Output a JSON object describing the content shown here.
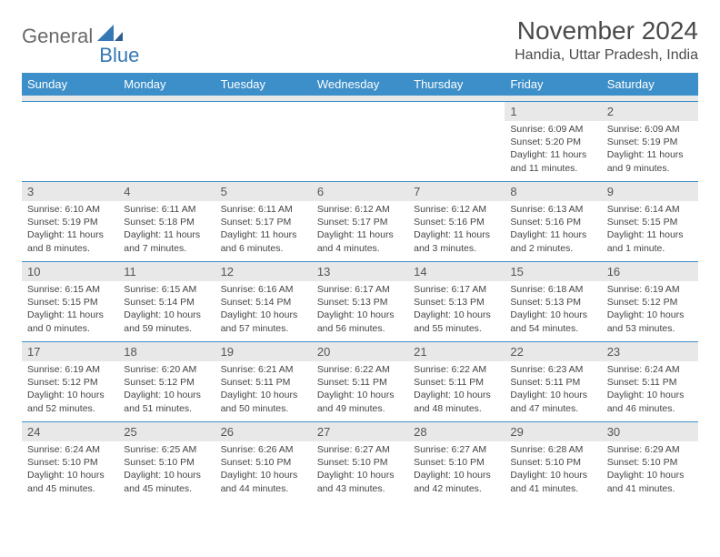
{
  "logo": {
    "part1": "General",
    "part2": "Blue"
  },
  "title": "November 2024",
  "location": "Handia, Uttar Pradesh, India",
  "colors": {
    "header_bg": "#3d8fc9",
    "header_text": "#ffffff",
    "daynum_bg": "#e8e8e8",
    "border": "#3d8fc9",
    "text": "#444444",
    "logo_gray": "#6a6a6a",
    "logo_blue": "#3478b5"
  },
  "day_header_fontsize": 13,
  "cell_fontsize": 10.5,
  "headers": [
    "Sunday",
    "Monday",
    "Tuesday",
    "Wednesday",
    "Thursday",
    "Friday",
    "Saturday"
  ],
  "weeks": [
    [
      null,
      null,
      null,
      null,
      null,
      {
        "n": "1",
        "sr": "6:09 AM",
        "ss": "5:20 PM",
        "dl": "11 hours and 11 minutes."
      },
      {
        "n": "2",
        "sr": "6:09 AM",
        "ss": "5:19 PM",
        "dl": "11 hours and 9 minutes."
      }
    ],
    [
      {
        "n": "3",
        "sr": "6:10 AM",
        "ss": "5:19 PM",
        "dl": "11 hours and 8 minutes."
      },
      {
        "n": "4",
        "sr": "6:11 AM",
        "ss": "5:18 PM",
        "dl": "11 hours and 7 minutes."
      },
      {
        "n": "5",
        "sr": "6:11 AM",
        "ss": "5:17 PM",
        "dl": "11 hours and 6 minutes."
      },
      {
        "n": "6",
        "sr": "6:12 AM",
        "ss": "5:17 PM",
        "dl": "11 hours and 4 minutes."
      },
      {
        "n": "7",
        "sr": "6:12 AM",
        "ss": "5:16 PM",
        "dl": "11 hours and 3 minutes."
      },
      {
        "n": "8",
        "sr": "6:13 AM",
        "ss": "5:16 PM",
        "dl": "11 hours and 2 minutes."
      },
      {
        "n": "9",
        "sr": "6:14 AM",
        "ss": "5:15 PM",
        "dl": "11 hours and 1 minute."
      }
    ],
    [
      {
        "n": "10",
        "sr": "6:15 AM",
        "ss": "5:15 PM",
        "dl": "11 hours and 0 minutes."
      },
      {
        "n": "11",
        "sr": "6:15 AM",
        "ss": "5:14 PM",
        "dl": "10 hours and 59 minutes."
      },
      {
        "n": "12",
        "sr": "6:16 AM",
        "ss": "5:14 PM",
        "dl": "10 hours and 57 minutes."
      },
      {
        "n": "13",
        "sr": "6:17 AM",
        "ss": "5:13 PM",
        "dl": "10 hours and 56 minutes."
      },
      {
        "n": "14",
        "sr": "6:17 AM",
        "ss": "5:13 PM",
        "dl": "10 hours and 55 minutes."
      },
      {
        "n": "15",
        "sr": "6:18 AM",
        "ss": "5:13 PM",
        "dl": "10 hours and 54 minutes."
      },
      {
        "n": "16",
        "sr": "6:19 AM",
        "ss": "5:12 PM",
        "dl": "10 hours and 53 minutes."
      }
    ],
    [
      {
        "n": "17",
        "sr": "6:19 AM",
        "ss": "5:12 PM",
        "dl": "10 hours and 52 minutes."
      },
      {
        "n": "18",
        "sr": "6:20 AM",
        "ss": "5:12 PM",
        "dl": "10 hours and 51 minutes."
      },
      {
        "n": "19",
        "sr": "6:21 AM",
        "ss": "5:11 PM",
        "dl": "10 hours and 50 minutes."
      },
      {
        "n": "20",
        "sr": "6:22 AM",
        "ss": "5:11 PM",
        "dl": "10 hours and 49 minutes."
      },
      {
        "n": "21",
        "sr": "6:22 AM",
        "ss": "5:11 PM",
        "dl": "10 hours and 48 minutes."
      },
      {
        "n": "22",
        "sr": "6:23 AM",
        "ss": "5:11 PM",
        "dl": "10 hours and 47 minutes."
      },
      {
        "n": "23",
        "sr": "6:24 AM",
        "ss": "5:11 PM",
        "dl": "10 hours and 46 minutes."
      }
    ],
    [
      {
        "n": "24",
        "sr": "6:24 AM",
        "ss": "5:10 PM",
        "dl": "10 hours and 45 minutes."
      },
      {
        "n": "25",
        "sr": "6:25 AM",
        "ss": "5:10 PM",
        "dl": "10 hours and 45 minutes."
      },
      {
        "n": "26",
        "sr": "6:26 AM",
        "ss": "5:10 PM",
        "dl": "10 hours and 44 minutes."
      },
      {
        "n": "27",
        "sr": "6:27 AM",
        "ss": "5:10 PM",
        "dl": "10 hours and 43 minutes."
      },
      {
        "n": "28",
        "sr": "6:27 AM",
        "ss": "5:10 PM",
        "dl": "10 hours and 42 minutes."
      },
      {
        "n": "29",
        "sr": "6:28 AM",
        "ss": "5:10 PM",
        "dl": "10 hours and 41 minutes."
      },
      {
        "n": "30",
        "sr": "6:29 AM",
        "ss": "5:10 PM",
        "dl": "10 hours and 41 minutes."
      }
    ]
  ],
  "labels": {
    "sunrise": "Sunrise: ",
    "sunset": "Sunset: ",
    "daylight": "Daylight: "
  }
}
